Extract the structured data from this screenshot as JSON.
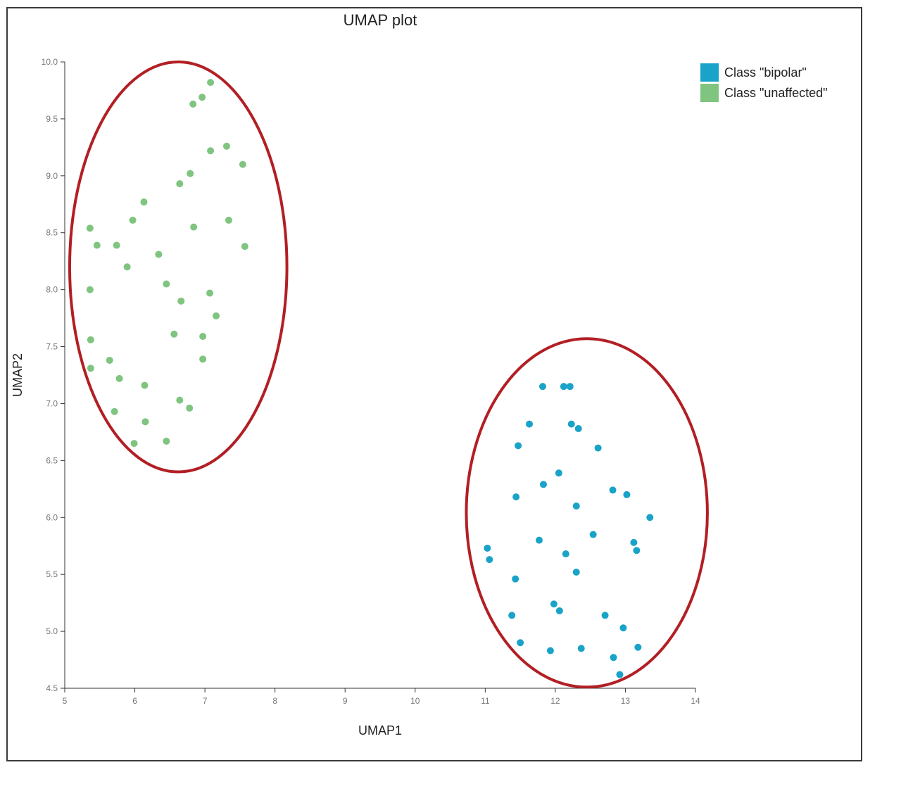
{
  "chart_data": {
    "type": "scatter",
    "title": "UMAP plot",
    "xlabel": "UMAP1",
    "ylabel": "UMAP2",
    "xlim": [
      5,
      14
    ],
    "ylim": [
      4.5,
      10.0
    ],
    "x_ticks": [
      "5",
      "6",
      "7",
      "8",
      "9",
      "10",
      "11",
      "12",
      "13",
      "14"
    ],
    "y_ticks": [
      "4.5",
      "5.0",
      "5.5",
      "6.0",
      "6.5",
      "7.0",
      "7.5",
      "8.0",
      "8.5",
      "9.0",
      "9.5",
      "10.0"
    ],
    "grid": false,
    "legend_position": "top-right",
    "series": [
      {
        "name": "Class \"bipolar\"",
        "color": "#1aa3c8",
        "points": [
          [
            11.82,
            7.15
          ],
          [
            12.12,
            7.15
          ],
          [
            12.21,
            7.15
          ],
          [
            11.63,
            6.82
          ],
          [
            12.23,
            6.82
          ],
          [
            12.33,
            6.78
          ],
          [
            11.47,
            6.63
          ],
          [
            12.61,
            6.61
          ],
          [
            12.05,
            6.39
          ],
          [
            11.83,
            6.29
          ],
          [
            12.82,
            6.24
          ],
          [
            13.02,
            6.2
          ],
          [
            11.44,
            6.18
          ],
          [
            12.3,
            6.1
          ],
          [
            13.35,
            6.0
          ],
          [
            12.54,
            5.85
          ],
          [
            11.77,
            5.8
          ],
          [
            13.12,
            5.78
          ],
          [
            11.03,
            5.73
          ],
          [
            13.16,
            5.71
          ],
          [
            12.15,
            5.68
          ],
          [
            11.06,
            5.63
          ],
          [
            12.3,
            5.52
          ],
          [
            11.43,
            5.46
          ],
          [
            11.98,
            5.24
          ],
          [
            12.06,
            5.18
          ],
          [
            11.38,
            5.14
          ],
          [
            12.71,
            5.14
          ],
          [
            12.97,
            5.03
          ],
          [
            11.5,
            4.9
          ],
          [
            13.18,
            4.86
          ],
          [
            12.37,
            4.85
          ],
          [
            11.93,
            4.83
          ],
          [
            12.83,
            4.77
          ],
          [
            12.92,
            4.62
          ]
        ]
      },
      {
        "name": "Class \"unaffected\"",
        "color": "#7fc47f",
        "points": [
          [
            7.08,
            9.82
          ],
          [
            6.96,
            9.69
          ],
          [
            6.83,
            9.63
          ],
          [
            7.31,
            9.26
          ],
          [
            7.08,
            9.22
          ],
          [
            7.54,
            9.1
          ],
          [
            6.79,
            9.02
          ],
          [
            6.64,
            8.93
          ],
          [
            6.13,
            8.77
          ],
          [
            5.97,
            8.61
          ],
          [
            7.34,
            8.61
          ],
          [
            6.84,
            8.55
          ],
          [
            5.36,
            8.54
          ],
          [
            5.46,
            8.39
          ],
          [
            5.74,
            8.39
          ],
          [
            7.57,
            8.38
          ],
          [
            6.34,
            8.31
          ],
          [
            5.89,
            8.2
          ],
          [
            6.45,
            8.05
          ],
          [
            5.36,
            8.0
          ],
          [
            7.07,
            7.97
          ],
          [
            6.66,
            7.9
          ],
          [
            7.16,
            7.77
          ],
          [
            6.56,
            7.61
          ],
          [
            6.97,
            7.59
          ],
          [
            5.37,
            7.56
          ],
          [
            5.64,
            7.38
          ],
          [
            6.97,
            7.39
          ],
          [
            5.37,
            7.31
          ],
          [
            5.78,
            7.22
          ],
          [
            6.14,
            7.16
          ],
          [
            6.64,
            7.03
          ],
          [
            6.78,
            6.96
          ],
          [
            5.71,
            6.93
          ],
          [
            6.15,
            6.84
          ],
          [
            6.45,
            6.67
          ],
          [
            5.99,
            6.65
          ]
        ]
      }
    ],
    "annotations": [
      {
        "shape": "ellipse",
        "color": "#b21f24",
        "center": [
          6.62,
          8.2
        ],
        "rx": 1.55,
        "ry": 1.8
      },
      {
        "shape": "ellipse",
        "color": "#b21f24",
        "center": [
          12.45,
          6.04
        ],
        "rx": 1.72,
        "ry": 1.53
      }
    ]
  }
}
